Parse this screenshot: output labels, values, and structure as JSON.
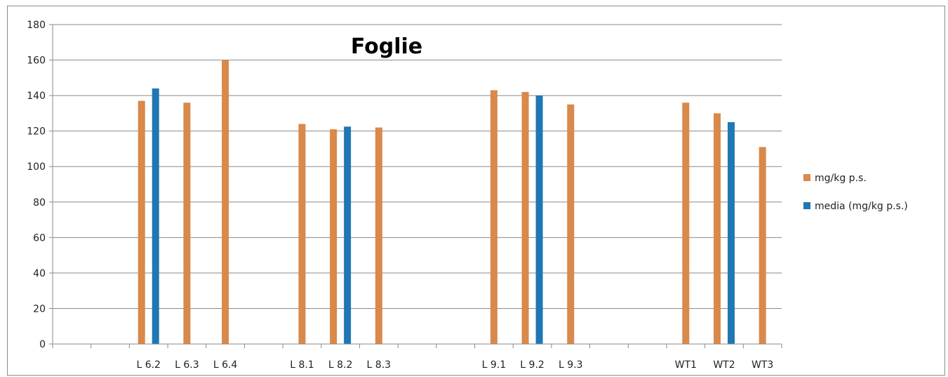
{
  "chart_data": {
    "type": "bar",
    "title": "Foglie",
    "xlabel": "",
    "ylabel": "",
    "ylim": [
      0,
      180
    ],
    "yticks": [
      0,
      20,
      40,
      60,
      80,
      100,
      120,
      140,
      160,
      180
    ],
    "grid": true,
    "legend_position": "right",
    "categories": [
      "",
      "",
      "L 6.2",
      "L 6.3",
      "L 6.4",
      "",
      "L 8.1",
      "L 8.2",
      "L 8.3",
      "",
      "",
      "L 9.1",
      "L 9.2",
      "L 9.3",
      "",
      "",
      "WT1",
      "WT2",
      "WT3"
    ],
    "series": [
      {
        "name": "mg/kg p.s.",
        "color": "#D9894A",
        "values": [
          null,
          null,
          137,
          136,
          160,
          null,
          124,
          121,
          122,
          null,
          null,
          143,
          142,
          null,
          null,
          null,
          136,
          130,
          111
        ]
      },
      {
        "name": "media (mg/kg p.s.)",
        "color": "#1F77B4",
        "values": [
          null,
          null,
          144,
          null,
          null,
          null,
          null,
          122.5,
          null,
          null,
          null,
          null,
          140,
          null,
          null,
          null,
          null,
          125,
          null
        ]
      }
    ],
    "extra_points": [
      {
        "series": "mg/kg p.s.",
        "category_index": 13,
        "value": 135
      }
    ]
  }
}
